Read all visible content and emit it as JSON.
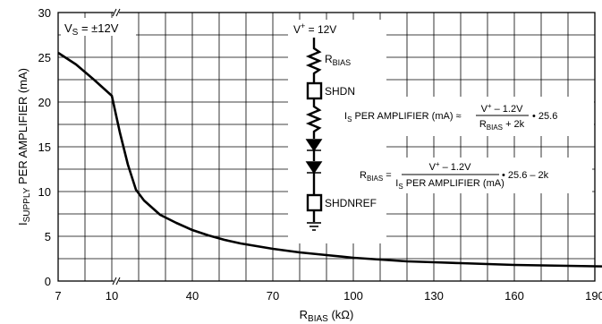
{
  "chart_data": {
    "type": "line",
    "xlabel": {
      "main": "R",
      "sub": "BIAS",
      "unit": " (kΩ)"
    },
    "ylabel": {
      "main": "I",
      "sub": "SUPPLY",
      "rest": " PER AMPLIFIER (mA)"
    },
    "ylim": [
      0,
      30
    ],
    "yticks": [
      "0",
      "5",
      "10",
      "15",
      "20",
      "25",
      "30"
    ],
    "xticks": [
      "7",
      "10",
      "40",
      "70",
      "100",
      "130",
      "160",
      "190"
    ],
    "x_axis_break": "between 7 and 10 (≈ marks)",
    "grid": true,
    "series": [
      {
        "x": [
          7,
          8,
          9,
          10,
          13,
          16,
          19,
          22,
          28,
          34,
          40,
          46,
          52,
          58,
          64,
          70,
          80,
          90,
          100,
          110,
          120,
          130,
          140,
          150,
          160,
          170,
          180,
          190,
          200
        ],
        "y": [
          25.5,
          24.2,
          22.5,
          20.7,
          16.6,
          13.0,
          10.2,
          9.0,
          7.4,
          6.5,
          5.7,
          5.1,
          4.6,
          4.2,
          3.9,
          3.6,
          3.2,
          2.9,
          2.6,
          2.4,
          2.2,
          2.1,
          2.0,
          1.9,
          1.8,
          1.75,
          1.7,
          1.65,
          1.6
        ]
      }
    ],
    "annotations": {
      "vs": {
        "main": "V",
        "sub": "S",
        "rest": " = ±12V"
      },
      "vplus": {
        "main": "V",
        "sup": "+",
        "rest": " = 12V"
      },
      "rbias": {
        "main": "R",
        "sub": "BIAS"
      },
      "shdn": "SHDN",
      "shdnref": "SHDNREF",
      "formula1": {
        "lhs_main": "I",
        "lhs_sub": "S",
        "lhs_rest": " PER AMPLIFIER (mA) ≈",
        "num_main": "V",
        "num_sup": "+",
        "num_rest": " – 1.2V",
        "den_main": "R",
        "den_sub": "BIAS",
        "den_rest": " + 2k",
        "tail": "• 25.6"
      },
      "formula2": {
        "lhs_main": "R",
        "lhs_sub": "BIAS",
        "lhs_rest": " =",
        "num_main": "V",
        "num_sup": "+",
        "num_rest": " – 1.2V",
        "den_main": "I",
        "den_sub": "S",
        "den_rest": " PER AMPLIFIER (mA)",
        "tail": "• 25.6 – 2k"
      }
    }
  }
}
